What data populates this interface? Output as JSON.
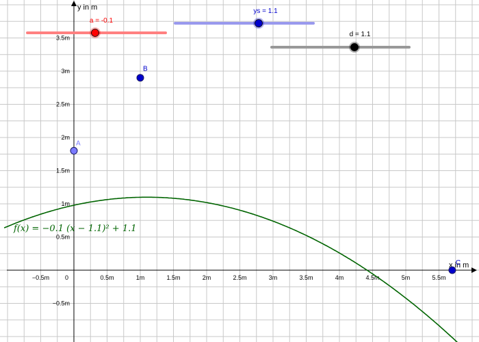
{
  "axes": {
    "x_title": "x in m",
    "y_title": "y in m",
    "x_ticks": [
      {
        "value": -0.5,
        "label": "−0.5m"
      },
      {
        "value": 0,
        "label": "0"
      },
      {
        "value": 0.5,
        "label": "0.5m"
      },
      {
        "value": 1,
        "label": "1m"
      },
      {
        "value": 1.5,
        "label": "1.5m"
      },
      {
        "value": 2,
        "label": "2m"
      },
      {
        "value": 2.5,
        "label": "2.5m"
      },
      {
        "value": 3,
        "label": "3m"
      },
      {
        "value": 3.5,
        "label": "3.5m"
      },
      {
        "value": 4,
        "label": "4m"
      },
      {
        "value": 4.5,
        "label": "4.5m"
      },
      {
        "value": 5,
        "label": "5m"
      },
      {
        "value": 5.5,
        "label": "5.5m"
      }
    ],
    "y_ticks": [
      {
        "value": 3.5,
        "label": "3.5m"
      },
      {
        "value": 3,
        "label": "3m"
      },
      {
        "value": 2.5,
        "label": "2.5m"
      },
      {
        "value": 2,
        "label": "2m"
      },
      {
        "value": 1.5,
        "label": "1.5m"
      },
      {
        "value": 1,
        "label": "1m"
      },
      {
        "value": 0.5,
        "label": "0.5m"
      },
      {
        "value": -0.5,
        "label": "−0.5m"
      }
    ]
  },
  "function": {
    "formula": "f(x)  =  −0.1 (x − 1.1)² + 1.1",
    "a": -0.1,
    "d": 1.1,
    "e": 1.1,
    "color": "#006400"
  },
  "points": [
    {
      "name": "A",
      "x": 0,
      "y": 1.8,
      "color": "#7b7bff"
    },
    {
      "name": "B",
      "x": 1,
      "y": 2.9,
      "color": "#0000cc"
    },
    {
      "name": "C",
      "x": 5.7,
      "y": 0,
      "color": "#0000cc"
    }
  ],
  "sliders": [
    {
      "name": "a",
      "label": "a = -0.1",
      "color": "#ff0000",
      "track_color": "#ff8080"
    },
    {
      "name": "ys",
      "label": "ys = 1.1",
      "color": "#0000cc",
      "track_color": "#9999ee"
    },
    {
      "name": "d",
      "label": "d = 1.1",
      "color": "#000000",
      "track_color": "#999999"
    }
  ]
}
